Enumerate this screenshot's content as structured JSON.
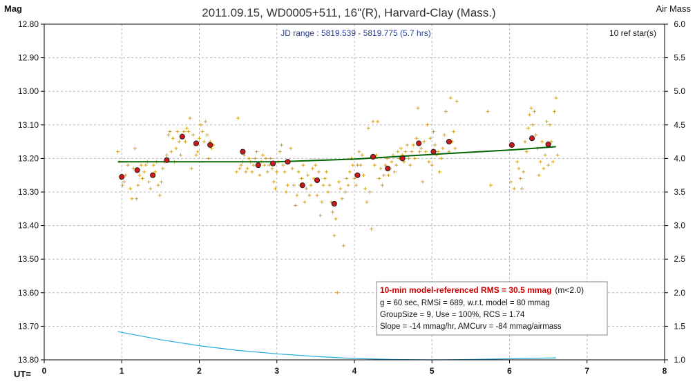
{
  "chart_data": {
    "type": "scatter",
    "title": "2011.09.15, WD0005+511, 16\"(R), Harvard-Clay (Mass.)",
    "left_axis_label": "Mag",
    "right_axis_label": "Air Mass",
    "x_axis_prefix": "UT=",
    "jd_range": "JD range : 5819.539 - 5819.775 (5.7 hrs)",
    "ref_stars": "10 ref star(s)",
    "grid": true,
    "xlim": [
      0,
      8
    ],
    "ylim_mag": [
      12.8,
      13.8
    ],
    "ylim_airmass": [
      1.0,
      6.0
    ],
    "x_ticks": [
      "0",
      "1",
      "2",
      "3",
      "4",
      "5",
      "6",
      "7",
      "8"
    ],
    "y_ticks_mag": [
      "12.80",
      "12.90",
      "13.00",
      "13.10",
      "13.20",
      "13.30",
      "13.40",
      "13.50",
      "13.60",
      "13.70",
      "13.80"
    ],
    "y_ticks_airmass": [
      "6.0",
      "5.5",
      "5.0",
      "4.5",
      "4.0",
      "3.5",
      "3.0",
      "2.5",
      "2.0",
      "1.5",
      "1.0"
    ],
    "colors": {
      "raw_points": "#d4a017",
      "binned_points": "#d01818",
      "trend_line": "#006400",
      "airmass_curve": "#22aadd",
      "grid": "#b8b8b8",
      "title_text": "#333333",
      "jd_text": "#2b3f8f",
      "stats_title": "#cc0000"
    },
    "stats_box": {
      "line1_bold": "10-min model-referenced RMS = 30.5 mmag",
      "line1_suffix": "(m<2.0)",
      "line2": "g = 60 sec, RMSi = 689, w.r.t. model = 80 mmag",
      "line3": "GroupSize = 9, Use = 100%, RCS = 1.74",
      "line4": "Slope = -14 mmag/hr, AMCurv = -84 mmag/airmass"
    },
    "series": [
      {
        "kind": "raw",
        "points": [
          [
            0.95,
            13.18
          ],
          [
            0.97,
            13.21
          ],
          [
            0.99,
            13.26
          ],
          [
            1.01,
            13.28
          ],
          [
            1.03,
            13.27
          ],
          [
            1.05,
            13.25
          ],
          [
            1.08,
            13.22
          ],
          [
            1.11,
            13.29
          ],
          [
            1.13,
            13.32
          ],
          [
            1.15,
            13.23
          ],
          [
            1.17,
            13.17
          ],
          [
            1.19,
            13.32
          ],
          [
            1.21,
            13.28
          ],
          [
            1.23,
            13.25
          ],
          [
            1.25,
            13.22
          ],
          [
            1.27,
            13.26
          ],
          [
            1.29,
            13.24
          ],
          [
            1.31,
            13.22
          ],
          [
            1.33,
            13.21
          ],
          [
            1.35,
            13.27
          ],
          [
            1.37,
            13.29
          ],
          [
            1.39,
            13.25
          ],
          [
            1.41,
            13.22
          ],
          [
            1.43,
            13.24
          ],
          [
            1.45,
            13.21
          ],
          [
            1.47,
            13.28
          ],
          [
            1.49,
            13.31
          ],
          [
            1.51,
            13.27
          ],
          [
            1.53,
            13.23
          ],
          [
            1.55,
            13.21
          ],
          [
            1.58,
            13.19
          ],
          [
            1.6,
            13.13
          ],
          [
            1.62,
            13.12
          ],
          [
            1.64,
            13.18
          ],
          [
            1.66,
            13.14
          ],
          [
            1.68,
            13.21
          ],
          [
            1.7,
            13.17
          ],
          [
            1.72,
            13.12
          ],
          [
            1.74,
            13.15
          ],
          [
            1.76,
            13.19
          ],
          [
            1.78,
            13.13
          ],
          [
            1.8,
            13.12
          ],
          [
            1.82,
            13.15
          ],
          [
            1.84,
            13.11
          ],
          [
            1.86,
            13.12
          ],
          [
            1.88,
            13.08
          ],
          [
            1.9,
            13.23
          ],
          [
            1.92,
            13.13
          ],
          [
            1.94,
            13.16
          ],
          [
            1.96,
            13.19
          ],
          [
            1.98,
            13.18
          ],
          [
            2.0,
            13.14
          ],
          [
            2.02,
            13.1
          ],
          [
            2.04,
            13.12
          ],
          [
            2.06,
            13.15
          ],
          [
            2.08,
            13.09
          ],
          [
            2.1,
            13.13
          ],
          [
            2.12,
            13.2
          ],
          [
            2.14,
            13.15
          ],
          [
            2.16,
            13.17
          ],
          [
            2.18,
            13.16
          ],
          [
            2.48,
            13.24
          ],
          [
            2.5,
            13.08
          ],
          [
            2.52,
            13.23
          ],
          [
            2.54,
            13.22
          ],
          [
            2.56,
            13.21
          ],
          [
            2.58,
            13.19
          ],
          [
            2.6,
            13.24
          ],
          [
            2.62,
            13.23
          ],
          [
            2.64,
            13.2
          ],
          [
            2.66,
            13.21
          ],
          [
            2.68,
            13.24
          ],
          [
            2.7,
            13.22
          ],
          [
            2.72,
            13.2
          ],
          [
            2.74,
            13.18
          ],
          [
            2.76,
            13.22
          ],
          [
            2.78,
            13.25
          ],
          [
            2.8,
            13.21
          ],
          [
            2.82,
            13.19
          ],
          [
            2.84,
            13.22
          ],
          [
            2.86,
            13.2
          ],
          [
            2.88,
            13.24
          ],
          [
            2.9,
            13.22
          ],
          [
            2.92,
            13.2
          ],
          [
            2.94,
            13.23
          ],
          [
            2.96,
            13.27
          ],
          [
            2.98,
            13.29
          ],
          [
            3.0,
            13.24
          ],
          [
            3.02,
            13.21
          ],
          [
            3.04,
            13.18
          ],
          [
            3.06,
            13.16
          ],
          [
            3.08,
            13.22
          ],
          [
            3.1,
            13.24
          ],
          [
            3.12,
            13.3
          ],
          [
            3.14,
            13.28
          ],
          [
            3.16,
            13.21
          ],
          [
            3.18,
            13.17
          ],
          [
            3.2,
            13.23
          ],
          [
            3.22,
            13.28
          ],
          [
            3.24,
            13.34
          ],
          [
            3.26,
            13.31
          ],
          [
            3.28,
            13.24
          ],
          [
            3.3,
            13.28
          ],
          [
            3.32,
            13.26
          ],
          [
            3.34,
            13.22
          ],
          [
            3.36,
            13.33
          ],
          [
            3.38,
            13.29
          ],
          [
            3.4,
            13.25
          ],
          [
            3.42,
            13.31
          ],
          [
            3.44,
            13.28
          ],
          [
            3.46,
            13.23
          ],
          [
            3.48,
            13.26
          ],
          [
            3.5,
            13.22
          ],
          [
            3.52,
            13.31
          ],
          [
            3.54,
            13.24
          ],
          [
            3.56,
            13.37
          ],
          [
            3.58,
            13.33
          ],
          [
            3.6,
            13.28
          ],
          [
            3.62,
            13.26
          ],
          [
            3.64,
            13.24
          ],
          [
            3.66,
            13.3
          ],
          [
            3.68,
            13.28
          ],
          [
            3.7,
            13.33
          ],
          [
            3.72,
            13.36
          ],
          [
            3.74,
            13.43
          ],
          [
            3.76,
            13.38
          ],
          [
            3.78,
            13.6
          ],
          [
            3.8,
            13.27
          ],
          [
            3.82,
            13.29
          ],
          [
            3.84,
            13.32
          ],
          [
            3.86,
            13.46
          ],
          [
            3.88,
            13.3
          ],
          [
            3.9,
            13.26
          ],
          [
            3.92,
            13.28
          ],
          [
            3.94,
            13.24
          ],
          [
            3.96,
            13.2
          ],
          [
            3.98,
            13.22
          ],
          [
            4.0,
            13.26
          ],
          [
            4.02,
            13.28
          ],
          [
            4.04,
            13.22
          ],
          [
            4.06,
            13.18
          ],
          [
            4.08,
            13.22
          ],
          [
            4.1,
            13.19
          ],
          [
            4.12,
            13.25
          ],
          [
            4.14,
            13.29
          ],
          [
            4.16,
            13.33
          ],
          [
            4.18,
            13.11
          ],
          [
            4.2,
            13.3
          ],
          [
            4.22,
            13.41
          ],
          [
            4.24,
            13.09
          ],
          [
            4.26,
            13.22
          ],
          [
            4.28,
            13.19
          ],
          [
            4.3,
            13.09
          ],
          [
            4.32,
            13.26
          ],
          [
            4.34,
            13.23
          ],
          [
            4.36,
            13.28
          ],
          [
            4.38,
            13.25
          ],
          [
            4.4,
            13.22
          ],
          [
            4.42,
            13.2
          ],
          [
            4.44,
            13.25
          ],
          [
            4.46,
            13.23
          ],
          [
            4.48,
            13.21
          ],
          [
            4.5,
            13.19
          ],
          [
            4.52,
            13.24
          ],
          [
            4.54,
            13.22
          ],
          [
            4.56,
            13.18
          ],
          [
            4.58,
            13.2
          ],
          [
            4.6,
            13.17
          ],
          [
            4.62,
            13.19
          ],
          [
            4.64,
            13.21
          ],
          [
            4.66,
            13.18
          ],
          [
            4.68,
            13.16
          ],
          [
            4.7,
            13.2
          ],
          [
            4.72,
            13.22
          ],
          [
            4.74,
            13.18
          ],
          [
            4.76,
            13.16
          ],
          [
            4.78,
            13.2
          ],
          [
            4.8,
            13.14
          ],
          [
            4.82,
            13.05
          ],
          [
            4.84,
            13.18
          ],
          [
            4.86,
            13.17
          ],
          [
            4.88,
            13.27
          ],
          [
            4.9,
            13.15
          ],
          [
            4.92,
            13.18
          ],
          [
            4.94,
            13.1
          ],
          [
            4.96,
            13.21
          ],
          [
            4.98,
            13.14
          ],
          [
            5.0,
            13.22
          ],
          [
            5.02,
            13.12
          ],
          [
            5.04,
            13.16
          ],
          [
            5.06,
            13.19
          ],
          [
            5.08,
            13.18
          ],
          [
            5.1,
            13.24
          ],
          [
            5.12,
            13.2
          ],
          [
            5.14,
            13.17
          ],
          [
            5.16,
            13.13
          ],
          [
            5.18,
            13.06
          ],
          [
            5.2,
            13.15
          ],
          [
            5.22,
            13.18
          ],
          [
            5.24,
            13.02
          ],
          [
            5.26,
            13.15
          ],
          [
            5.28,
            13.12
          ],
          [
            5.3,
            13.17
          ],
          [
            5.32,
            13.03
          ],
          [
            5.72,
            13.06
          ],
          [
            5.76,
            13.28
          ],
          [
            6.02,
            13.27
          ],
          [
            6.06,
            13.29
          ],
          [
            6.1,
            13.21
          ],
          [
            6.12,
            13.23
          ],
          [
            6.14,
            13.26
          ],
          [
            6.16,
            13.29
          ],
          [
            6.18,
            13.24
          ],
          [
            6.2,
            13.15
          ],
          [
            6.22,
            13.18
          ],
          [
            6.24,
            13.11
          ],
          [
            6.26,
            13.07
          ],
          [
            6.28,
            13.05
          ],
          [
            6.3,
            13.1
          ],
          [
            6.32,
            13.06
          ],
          [
            6.34,
            13.13
          ],
          [
            6.36,
            13.17
          ],
          [
            6.38,
            13.25
          ],
          [
            6.4,
            13.21
          ],
          [
            6.42,
            13.15
          ],
          [
            6.44,
            13.23
          ],
          [
            6.46,
            13.19
          ],
          [
            6.48,
            13.09
          ],
          [
            6.5,
            13.22
          ],
          [
            6.52,
            13.1
          ],
          [
            6.54,
            13.15
          ],
          [
            6.56,
            13.21
          ],
          [
            6.58,
            13.06
          ],
          [
            6.6,
            13.02
          ],
          [
            6.62,
            13.19
          ]
        ]
      },
      {
        "kind": "binned",
        "points": [
          [
            1.0,
            13.255
          ],
          [
            1.2,
            13.235
          ],
          [
            1.4,
            13.25
          ],
          [
            1.58,
            13.205
          ],
          [
            1.78,
            13.135
          ],
          [
            1.96,
            13.155
          ],
          [
            2.14,
            13.16
          ],
          [
            2.56,
            13.18
          ],
          [
            2.76,
            13.22
          ],
          [
            2.95,
            13.215
          ],
          [
            3.14,
            13.21
          ],
          [
            3.33,
            13.28
          ],
          [
            3.52,
            13.265
          ],
          [
            3.74,
            13.335
          ],
          [
            4.04,
            13.25
          ],
          [
            4.24,
            13.195
          ],
          [
            4.43,
            13.23
          ],
          [
            4.62,
            13.2
          ],
          [
            4.83,
            13.155
          ],
          [
            5.02,
            13.18
          ],
          [
            5.22,
            13.15
          ],
          [
            6.03,
            13.16
          ],
          [
            6.29,
            13.14
          ],
          [
            6.5,
            13.158
          ]
        ]
      }
    ],
    "trend_line": [
      [
        0.95,
        13.21
      ],
      [
        3.0,
        13.21
      ],
      [
        4.0,
        13.202
      ],
      [
        5.0,
        13.188
      ],
      [
        6.0,
        13.175
      ],
      [
        6.6,
        13.165
      ]
    ],
    "airmass_curve": [
      [
        0.95,
        1.42
      ],
      [
        1.5,
        1.3
      ],
      [
        2.0,
        1.21
      ],
      [
        2.5,
        1.14
      ],
      [
        3.0,
        1.09
      ],
      [
        3.5,
        1.05
      ],
      [
        4.0,
        1.02
      ],
      [
        4.5,
        1.005
      ],
      [
        5.0,
        1.0
      ],
      [
        5.5,
        1.005
      ],
      [
        6.0,
        1.015
      ],
      [
        6.6,
        1.03
      ]
    ]
  }
}
